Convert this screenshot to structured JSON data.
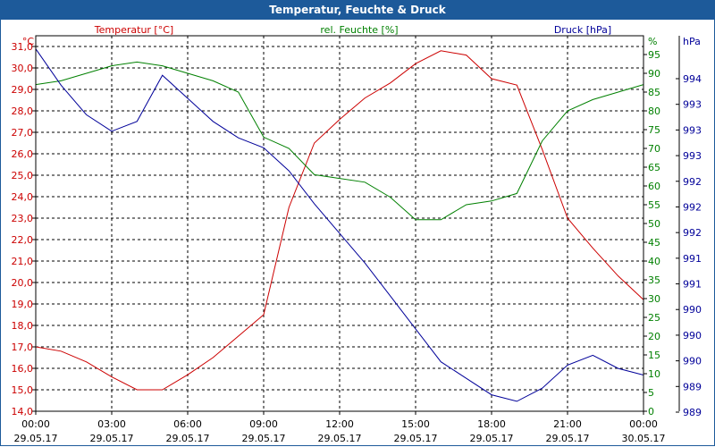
{
  "window": {
    "title": "Temperatur, Feuchte & Druck"
  },
  "chart_data": {
    "type": "line",
    "title": "Temperatur, Feuchte & Druck",
    "x": [
      "00:00",
      "01:00",
      "02:00",
      "03:00",
      "04:00",
      "05:00",
      "06:00",
      "07:00",
      "08:00",
      "09:00",
      "10:00",
      "11:00",
      "12:00",
      "13:00",
      "14:00",
      "15:00",
      "16:00",
      "17:00",
      "18:00",
      "19:00",
      "20:00",
      "21:00",
      "22:00",
      "23:00",
      "00:00"
    ],
    "xticks": [
      {
        "time": "00:00",
        "date": "29.05.17"
      },
      {
        "time": "03:00",
        "date": "29.05.17"
      },
      {
        "time": "06:00",
        "date": "29.05.17"
      },
      {
        "time": "09:00",
        "date": "29.05.17"
      },
      {
        "time": "12:00",
        "date": "29.05.17"
      },
      {
        "time": "15:00",
        "date": "29.05.17"
      },
      {
        "time": "18:00",
        "date": "29.05.17"
      },
      {
        "time": "21:00",
        "date": "29.05.17"
      },
      {
        "time": "00:00",
        "date": "30.05.17"
      }
    ],
    "axes": {
      "temperature": {
        "label": "Temperatur [°C]",
        "unit": "°C",
        "ylim": [
          14,
          31.5
        ],
        "ticks": [
          "14,0",
          "15,0",
          "16,0",
          "17,0",
          "18,0",
          "19,0",
          "20,0",
          "21,0",
          "22,0",
          "23,0",
          "24,0",
          "25,0",
          "26,0",
          "27,0",
          "28,0",
          "29,0",
          "30,0",
          "31,0"
        ]
      },
      "humidity": {
        "label": "rel. Feuchte [%]",
        "unit": "%",
        "ylim": [
          0,
          100
        ],
        "ticks": [
          "0",
          "5",
          "10",
          "15",
          "20",
          "25",
          "30",
          "35",
          "40",
          "45",
          "50",
          "55",
          "60",
          "65",
          "70",
          "75",
          "80",
          "85",
          "90",
          "95"
        ]
      },
      "pressure": {
        "label": "Druck [hPa]",
        "unit": "hPa",
        "ylim": [
          988.8,
          994.5
        ],
        "ticks": [
          "989",
          "989",
          "990",
          "990",
          "990",
          "991",
          "991",
          "992",
          "992",
          "992",
          "993",
          "993",
          "993",
          "994"
        ]
      }
    },
    "series": [
      {
        "name": "Temperatur [°C]",
        "color": "#cc0000",
        "values": [
          17.0,
          16.8,
          16.3,
          15.6,
          15.0,
          15.0,
          15.7,
          16.5,
          17.5,
          18.5,
          23.5,
          26.5,
          27.6,
          28.6,
          29.3,
          30.2,
          30.8,
          30.6,
          29.5,
          29.2,
          26.2,
          23.0,
          21.6,
          20.3,
          19.2
        ]
      },
      {
        "name": "rel. Feuchte [%]",
        "color": "#008000",
        "values": [
          87,
          88,
          90,
          92,
          93,
          92,
          90,
          88,
          85,
          73,
          70,
          63,
          62,
          61,
          57,
          51,
          51,
          55,
          56,
          58,
          72,
          80,
          83,
          85,
          87
        ]
      },
      {
        "name": "Druck [hPa]",
        "color": "#000099",
        "values": [
          994.3,
          993.75,
          993.3,
          993.05,
          993.2,
          993.9,
          993.55,
          993.2,
          992.95,
          992.8,
          992.45,
          991.95,
          991.5,
          991.05,
          990.55,
          990.05,
          989.55,
          989.3,
          989.05,
          988.95,
          989.15,
          989.5,
          989.65,
          989.45,
          989.35
        ]
      }
    ]
  }
}
